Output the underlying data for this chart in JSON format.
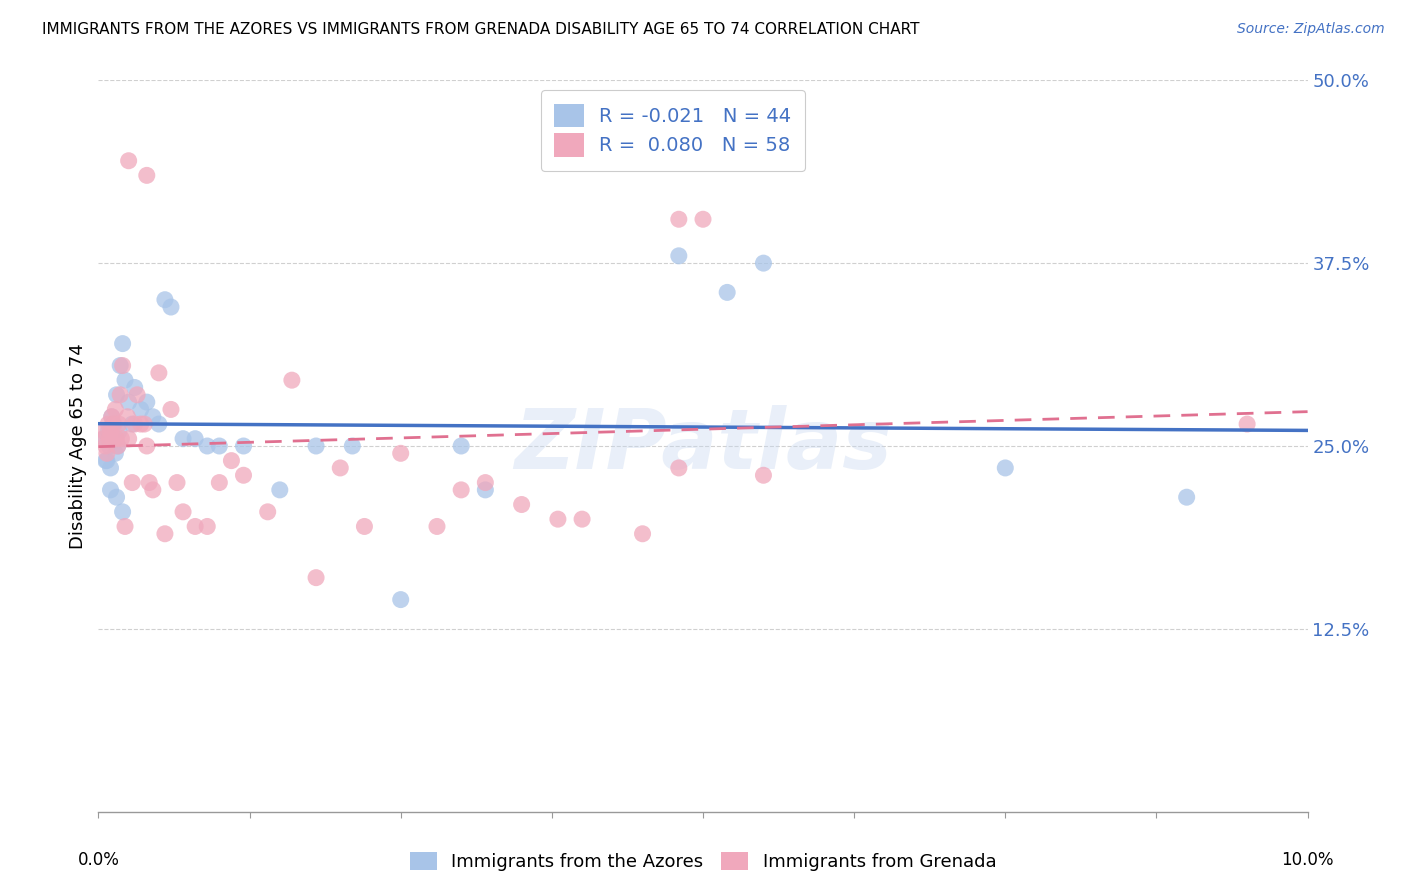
{
  "title": "IMMIGRANTS FROM THE AZORES VS IMMIGRANTS FROM GRENADA DISABILITY AGE 65 TO 74 CORRELATION CHART",
  "source": "Source: ZipAtlas.com",
  "ylabel": "Disability Age 65 to 74",
  "ytick_vals": [
    12.5,
    25.0,
    37.5,
    50.0
  ],
  "ytick_labels": [
    "12.5%",
    "25.0%",
    "37.5%",
    "50.0%"
  ],
  "xlim": [
    0.0,
    10.0
  ],
  "ylim": [
    0.0,
    50.0
  ],
  "color_blue": "#a8c4e8",
  "color_pink": "#f0a8bc",
  "line_blue": "#4472c4",
  "line_pink": "#e07090",
  "watermark": "ZIPatlas",
  "R_blue": -0.021,
  "N_blue": 44,
  "R_pink": 0.08,
  "N_pink": 58,
  "blue_label": "Immigrants from the Azores",
  "pink_label": "Immigrants from Grenada",
  "legend_text_color": "#4472c4",
  "axis_label_color": "#4472c4",
  "grid_color": "#d0d0d0",
  "blue_x": [
    0.05,
    0.07,
    0.08,
    0.09,
    0.1,
    0.11,
    0.12,
    0.13,
    0.14,
    0.15,
    0.16,
    0.17,
    0.18,
    0.2,
    0.22,
    0.25,
    0.28,
    0.3,
    0.35,
    0.4,
    0.45,
    0.5,
    0.55,
    0.6,
    0.7,
    0.8,
    0.9,
    1.0,
    1.2,
    1.5,
    1.8,
    2.1,
    2.5,
    3.0,
    3.2,
    4.8,
    5.2,
    5.5,
    7.5,
    9.0,
    0.06,
    0.1,
    0.15,
    0.2
  ],
  "blue_y": [
    25.5,
    24.0,
    26.0,
    25.0,
    23.5,
    27.0,
    26.5,
    25.5,
    24.5,
    28.5,
    25.0,
    26.0,
    30.5,
    32.0,
    29.5,
    28.0,
    26.5,
    29.0,
    27.5,
    28.0,
    27.0,
    26.5,
    35.0,
    34.5,
    25.5,
    25.5,
    25.0,
    25.0,
    25.0,
    22.0,
    25.0,
    25.0,
    14.5,
    25.0,
    22.0,
    38.0,
    35.5,
    37.5,
    23.5,
    21.5,
    24.0,
    22.0,
    21.5,
    20.5
  ],
  "pink_x": [
    0.04,
    0.05,
    0.06,
    0.07,
    0.08,
    0.09,
    0.1,
    0.11,
    0.12,
    0.13,
    0.14,
    0.15,
    0.16,
    0.17,
    0.18,
    0.19,
    0.2,
    0.22,
    0.24,
    0.25,
    0.28,
    0.3,
    0.32,
    0.35,
    0.38,
    0.4,
    0.42,
    0.45,
    0.5,
    0.55,
    0.6,
    0.65,
    0.7,
    0.8,
    0.9,
    1.0,
    1.1,
    1.2,
    1.4,
    1.6,
    1.8,
    2.0,
    2.2,
    2.5,
    2.8,
    3.0,
    3.2,
    3.5,
    3.8,
    4.0,
    4.5,
    4.8,
    5.0,
    5.5,
    0.25,
    0.4,
    4.8,
    9.5
  ],
  "pink_y": [
    25.5,
    26.0,
    25.0,
    24.5,
    26.5,
    25.5,
    26.0,
    27.0,
    25.5,
    26.5,
    27.5,
    25.5,
    25.0,
    26.5,
    28.5,
    25.5,
    30.5,
    19.5,
    27.0,
    25.5,
    22.5,
    26.5,
    28.5,
    26.5,
    26.5,
    25.0,
    22.5,
    22.0,
    30.0,
    19.0,
    27.5,
    22.5,
    20.5,
    19.5,
    19.5,
    22.5,
    24.0,
    23.0,
    20.5,
    29.5,
    16.0,
    23.5,
    19.5,
    24.5,
    19.5,
    22.0,
    22.5,
    21.0,
    20.0,
    20.0,
    19.0,
    23.5,
    40.5,
    23.0,
    44.5,
    43.5,
    40.5,
    26.5
  ]
}
